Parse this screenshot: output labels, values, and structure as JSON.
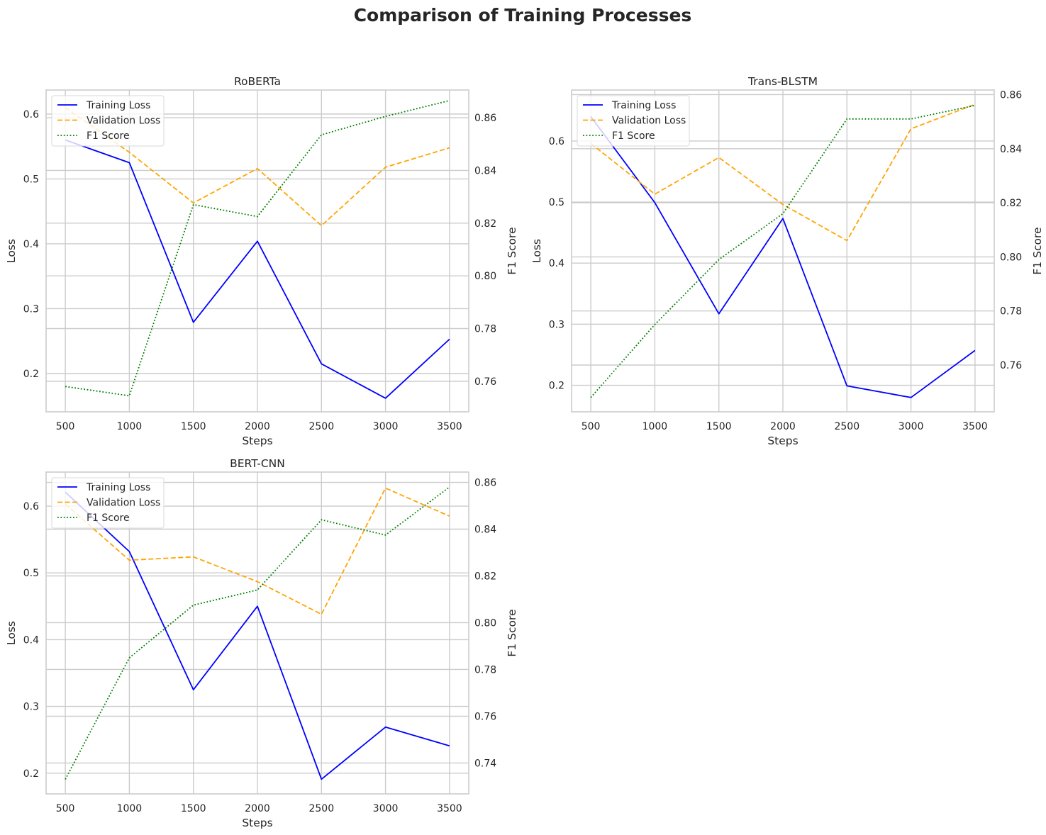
{
  "title": "Comparison of Training Processes",
  "colors": {
    "Training Loss": "#0000ff",
    "Validation Loss": "#ffa500",
    "F1 Score": "#008000",
    "grid": "#cccccc",
    "spine": "#cccccc",
    "text": "#262626"
  },
  "chart_data": [
    {
      "type": "line",
      "title": "RoBERTa",
      "xlabel": "Steps",
      "ylabel": "Loss",
      "y2label": "F1 Score",
      "x": [
        500,
        1000,
        1500,
        2000,
        2500,
        3000,
        3500
      ],
      "xticks": [
        500,
        1000,
        1500,
        2000,
        2500,
        3000,
        3500
      ],
      "xlim": [
        350,
        3650
      ],
      "ylim": [
        0.141,
        0.637
      ],
      "yticks": [
        0.2,
        0.3,
        0.4,
        0.5,
        0.6
      ],
      "y2lim": [
        0.7484,
        0.8705
      ],
      "y2ticks": [
        0.76,
        0.78,
        0.8,
        0.82,
        0.84,
        0.86
      ],
      "grid": true,
      "legend_location": "upper left",
      "series": [
        {
          "name": "Training Loss",
          "axis": "left",
          "style": "solid",
          "values": [
            0.56,
            0.525,
            0.279,
            0.404,
            0.215,
            0.162,
            0.253
          ]
        },
        {
          "name": "Validation Loss",
          "axis": "left",
          "style": "dashed",
          "values": [
            0.61,
            0.541,
            0.463,
            0.516,
            0.428,
            0.518,
            0.548
          ]
        },
        {
          "name": "F1 Score",
          "axis": "right",
          "style": "dotted",
          "values": [
            0.758,
            0.7545,
            0.827,
            0.8225,
            0.8535,
            0.8605,
            0.8665
          ]
        }
      ]
    },
    {
      "type": "line",
      "title": "Trans-BLSTM",
      "xlabel": "Steps",
      "ylabel": "Loss",
      "y2label": "F1 Score",
      "x": [
        500,
        1000,
        1500,
        2000,
        2500,
        3000,
        3500
      ],
      "xticks": [
        500,
        1000,
        1500,
        2000,
        2500,
        3000,
        3500
      ],
      "xlim": [
        350,
        3650
      ],
      "ylim": [
        0.1565,
        0.6835
      ],
      "yticks": [
        0.2,
        0.3,
        0.4,
        0.5,
        0.6
      ],
      "y2lim": [
        0.7427,
        0.8617
      ],
      "y2ticks": [
        0.76,
        0.78,
        0.8,
        0.82,
        0.84,
        0.86
      ],
      "grid": true,
      "legend_location": "upper left",
      "series": [
        {
          "name": "Training Loss",
          "axis": "left",
          "style": "solid",
          "values": [
            0.64,
            0.499,
            0.317,
            0.473,
            0.199,
            0.18,
            0.257
          ]
        },
        {
          "name": "Validation Loss",
          "axis": "left",
          "style": "dashed",
          "values": [
            0.596,
            0.513,
            0.573,
            0.496,
            0.437,
            0.62,
            0.66
          ]
        },
        {
          "name": "F1 Score",
          "axis": "right",
          "style": "dotted",
          "values": [
            0.748,
            0.775,
            0.799,
            0.816,
            0.851,
            0.851,
            0.856
          ]
        }
      ]
    },
    {
      "type": "line",
      "title": "BERT-CNN",
      "xlabel": "Steps",
      "ylabel": "Loss",
      "y2label": "F1 Score",
      "x": [
        500,
        1000,
        1500,
        2000,
        2500,
        3000,
        3500
      ],
      "xticks": [
        500,
        1000,
        1500,
        2000,
        2500,
        3000,
        3500
      ],
      "xlim": [
        350,
        3650
      ],
      "ylim": [
        0.169,
        0.651
      ],
      "yticks": [
        0.2,
        0.3,
        0.4,
        0.5,
        0.6
      ],
      "y2lim": [
        0.7268,
        0.8644
      ],
      "y2ticks": [
        0.74,
        0.76,
        0.78,
        0.8,
        0.82,
        0.84,
        0.86
      ],
      "grid": true,
      "legend_location": "upper left",
      "series": [
        {
          "name": "Training Loss",
          "axis": "left",
          "style": "solid",
          "values": [
            0.621,
            0.532,
            0.325,
            0.45,
            0.191,
            0.269,
            0.241
          ]
        },
        {
          "name": "Validation Loss",
          "axis": "left",
          "style": "dashed",
          "values": [
            0.603,
            0.519,
            0.524,
            0.487,
            0.438,
            0.627,
            0.585
          ]
        },
        {
          "name": "F1 Score",
          "axis": "right",
          "style": "dotted",
          "values": [
            0.733,
            0.785,
            0.8075,
            0.814,
            0.844,
            0.8375,
            0.858
          ]
        }
      ]
    }
  ]
}
